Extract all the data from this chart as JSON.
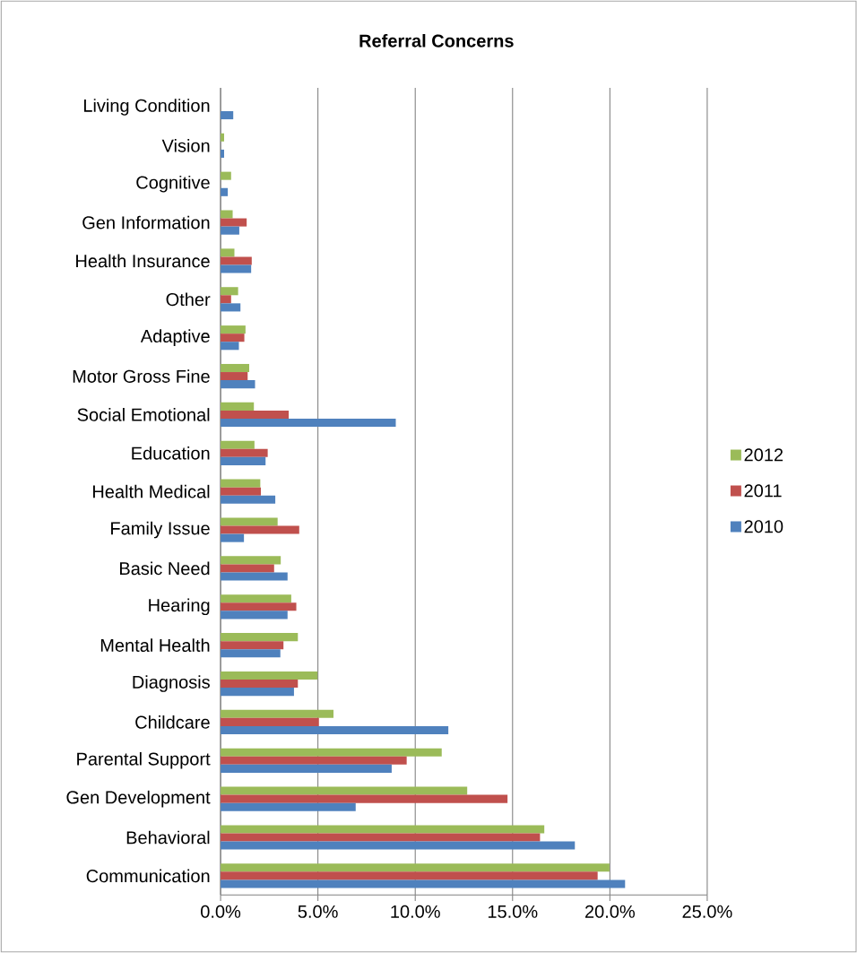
{
  "chart_data": {
    "type": "bar",
    "orientation": "horizontal",
    "title": "Referral Concerns",
    "categories": [
      "Living Condition",
      "Vision",
      "Cognitive",
      "Gen Information",
      "Health Insurance",
      "Other",
      "Adaptive",
      "Motor Gross Fine",
      "Social Emotional",
      "Education",
      "Health Medical",
      "Family Issue",
      "Basic Need",
      "Hearing",
      "Mental Health",
      "Diagnosis",
      "Childcare",
      "Parental Support",
      "Gen Development",
      "Behavioral",
      "Communication"
    ],
    "series": [
      {
        "name": "2012",
        "color": "#9bbb59",
        "values": [
          null,
          0.18,
          0.54,
          0.62,
          0.71,
          0.9,
          1.28,
          1.47,
          1.71,
          1.74,
          2.04,
          2.93,
          3.09,
          3.63,
          3.97,
          4.98,
          5.8,
          11.36,
          12.67,
          16.63,
          19.98
        ]
      },
      {
        "name": "2011",
        "color": "#c0504d",
        "values": [
          null,
          null,
          null,
          1.34,
          1.6,
          0.54,
          1.22,
          1.39,
          3.5,
          2.42,
          2.07,
          4.04,
          2.75,
          3.89,
          3.23,
          3.97,
          5.05,
          9.56,
          14.74,
          16.41,
          19.37
        ]
      },
      {
        "name": "2010",
        "color": "#4f81bd",
        "values": [
          0.65,
          0.18,
          0.37,
          0.96,
          1.57,
          1.02,
          0.94,
          1.77,
          9.0,
          2.31,
          2.81,
          1.2,
          3.44,
          3.44,
          3.07,
          3.77,
          11.7,
          8.79,
          6.94,
          18.2,
          20.78
        ]
      }
    ],
    "xlim": [
      0,
      25
    ],
    "xticks": [
      {
        "value": 0,
        "label": "0.0%"
      },
      {
        "value": 5,
        "label": "5.0%"
      },
      {
        "value": 10,
        "label": "10.0%"
      },
      {
        "value": 15,
        "label": "15.0%"
      },
      {
        "value": 20,
        "label": "20.0%"
      },
      {
        "value": 25,
        "label": "25.0%"
      }
    ],
    "grid": "x",
    "legend": "right"
  }
}
